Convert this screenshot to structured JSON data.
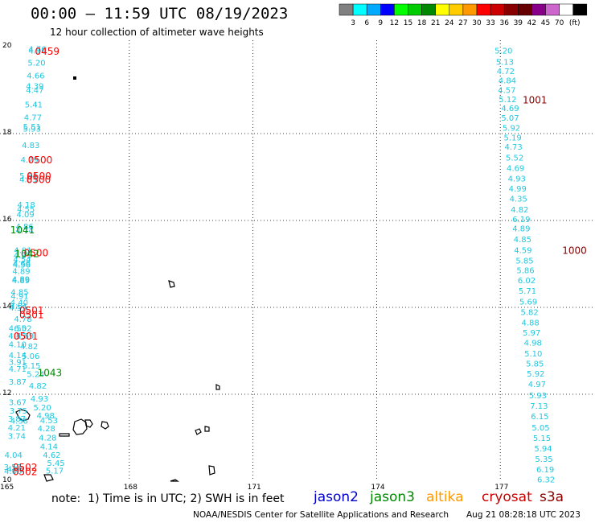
{
  "header": {
    "title": "00:00 – 11:59 UTC 08/19/2023",
    "subtitle": "12 hour collection of altimeter wave heights"
  },
  "scale": {
    "colors": [
      "#808080",
      "#00ffff",
      "#00aaff",
      "#0000ff",
      "#00ff00",
      "#00cc00",
      "#008800",
      "#ffff00",
      "#ffcc00",
      "#ff9900",
      "#ff0000",
      "#cc0000",
      "#880000",
      "#660000",
      "#880088",
      "#cc66cc",
      "#ffffff",
      "#000000"
    ],
    "labels": [
      "3",
      "6",
      "9",
      "12",
      "15",
      "18",
      "21",
      "24",
      "27",
      "30",
      "33",
      "36",
      "39",
      "42",
      "45",
      "70"
    ],
    "unit": "(ft)"
  },
  "axes": {
    "x_labels": [
      "165",
      "168",
      "171",
      "174",
      "177"
    ],
    "y_labels": [
      "20",
      "18",
      "16",
      "14",
      "12",
      "10"
    ]
  },
  "footer": {
    "note": "note:  1) Time is in UTC; 2) SWH is in feet",
    "satellites": [
      {
        "name": "jason2",
        "color": "#0000cc"
      },
      {
        "name": "jason3",
        "color": "#008800"
      },
      {
        "name": "altika",
        "color": "#ff9900"
      },
      {
        "name": "cryosat",
        "color": "#cc0000"
      },
      {
        "name": "s3a",
        "color": "#880000"
      }
    ],
    "credit": "NOAA/NESDIS Center for Satellite Applications and Research",
    "timestamp": "Aug 21 08:28:18 UTC 2023"
  },
  "map_data": {
    "lon_range": [
      165,
      180
    ],
    "lat_range": [
      10,
      20
    ],
    "track_west": [
      {
        "lat": 19.95,
        "lon": 165.77,
        "v": "4.76"
      },
      {
        "lat": 19.92,
        "lon": 165.77,
        "v": "4.90"
      },
      {
        "lat": 19.64,
        "lon": 165.75,
        "v": "5.20"
      },
      {
        "lat": 19.34,
        "lon": 165.73,
        "v": "4.66"
      },
      {
        "lat": 19.1,
        "lon": 165.71,
        "v": "4.39"
      },
      {
        "lat": 19.01,
        "lon": 165.71,
        "v": "4.47"
      },
      {
        "lat": 18.68,
        "lon": 165.68,
        "v": "5.41"
      },
      {
        "lat": 18.38,
        "lon": 165.66,
        "v": "4.77"
      },
      {
        "lat": 18.17,
        "lon": 165.64,
        "v": "5.51"
      },
      {
        "lat": 18.12,
        "lon": 165.64,
        "v": "5.93"
      },
      {
        "lat": 17.74,
        "lon": 165.61,
        "v": "4.83"
      },
      {
        "lat": 17.41,
        "lon": 165.58,
        "v": "4.79"
      },
      {
        "lat": 17.04,
        "lon": 165.55,
        "v": "5.64"
      },
      {
        "lat": 16.95,
        "lon": 165.55,
        "v": "4.83"
      },
      {
        "lat": 16.37,
        "lon": 165.5,
        "v": "4.18"
      },
      {
        "lat": 16.27,
        "lon": 165.49,
        "v": "4.55"
      },
      {
        "lat": 16.15,
        "lon": 165.48,
        "v": "4.09"
      },
      {
        "lat": 15.87,
        "lon": 165.46,
        "v": "4.86"
      },
      {
        "lat": 15.78,
        "lon": 165.46,
        "v": "4.74"
      },
      {
        "lat": 15.32,
        "lon": 165.42,
        "v": "4.91"
      },
      {
        "lat": 15.2,
        "lon": 165.41,
        "v": "4.31"
      },
      {
        "lat": 15.11,
        "lon": 165.4,
        "v": "4.54"
      },
      {
        "lat": 15.02,
        "lon": 165.39,
        "v": "4.66"
      },
      {
        "lat": 14.99,
        "lon": 165.39,
        "v": "4.56"
      },
      {
        "lat": 14.84,
        "lon": 165.38,
        "v": "4.89"
      },
      {
        "lat": 14.66,
        "lon": 165.37,
        "v": "4.89"
      },
      {
        "lat": 14.63,
        "lon": 165.37,
        "v": "4.89"
      },
      {
        "lat": 14.36,
        "lon": 165.34,
        "v": "4.85"
      },
      {
        "lat": 14.27,
        "lon": 165.34,
        "v": "4.91"
      },
      {
        "lat": 14.12,
        "lon": 165.33,
        "v": "4.40"
      },
      {
        "lat": 14.04,
        "lon": 165.32,
        "v": "4.51"
      },
      {
        "lat": 14.0,
        "lon": 165.3,
        "v": "4.55"
      },
      {
        "lat": 13.74,
        "lon": 165.42,
        "v": "4.78"
      },
      {
        "lat": 13.53,
        "lon": 165.29,
        "v": "4.55"
      },
      {
        "lat": 13.53,
        "lon": 165.42,
        "v": "6.02"
      },
      {
        "lat": 13.35,
        "lon": 165.28,
        "v": "4.55"
      },
      {
        "lat": 13.35,
        "lon": 165.47,
        "v": "4.69"
      },
      {
        "lat": 13.16,
        "lon": 165.29,
        "v": "4.10"
      },
      {
        "lat": 13.11,
        "lon": 165.57,
        "v": "4.82"
      },
      {
        "lat": 12.91,
        "lon": 165.29,
        "v": "4.14"
      },
      {
        "lat": 12.89,
        "lon": 165.61,
        "v": "5.06"
      },
      {
        "lat": 12.75,
        "lon": 165.29,
        "v": "3.91"
      },
      {
        "lat": 12.67,
        "lon": 165.63,
        "v": "5.15"
      },
      {
        "lat": 12.59,
        "lon": 165.29,
        "v": "4.71"
      },
      {
        "lat": 12.47,
        "lon": 165.73,
        "v": "5.24"
      },
      {
        "lat": 12.3,
        "lon": 165.29,
        "v": "3.87"
      },
      {
        "lat": 12.2,
        "lon": 165.78,
        "v": "4.82"
      },
      {
        "lat": 11.91,
        "lon": 165.82,
        "v": "4.93"
      },
      {
        "lat": 11.82,
        "lon": 165.29,
        "v": "3.67"
      },
      {
        "lat": 11.7,
        "lon": 165.89,
        "v": "5.20"
      },
      {
        "lat": 11.63,
        "lon": 165.31,
        "v": "3.75"
      },
      {
        "lat": 11.52,
        "lon": 165.97,
        "v": "4.98"
      },
      {
        "lat": 11.44,
        "lon": 165.27,
        "v": "3.87"
      },
      {
        "lat": 11.4,
        "lon": 165.33,
        "v": "4.38"
      },
      {
        "lat": 11.41,
        "lon": 166.05,
        "v": "4.53"
      },
      {
        "lat": 11.24,
        "lon": 165.27,
        "v": "4.21"
      },
      {
        "lat": 11.22,
        "lon": 165.99,
        "v": "4.28"
      },
      {
        "lat": 11.05,
        "lon": 165.27,
        "v": "3.74"
      },
      {
        "lat": 11.01,
        "lon": 166.02,
        "v": "4.28"
      },
      {
        "lat": 10.81,
        "lon": 166.05,
        "v": "4.14"
      },
      {
        "lat": 10.61,
        "lon": 165.19,
        "v": "4.04"
      },
      {
        "lat": 10.61,
        "lon": 166.12,
        "v": "4.62"
      },
      {
        "lat": 10.43,
        "lon": 166.22,
        "v": "5.45"
      },
      {
        "lat": 10.33,
        "lon": 165.17,
        "v": "3.57"
      },
      {
        "lat": 10.25,
        "lon": 166.19,
        "v": "5.17"
      },
      {
        "lat": 10.24,
        "lon": 165.18,
        "v": "4.00"
      },
      {
        "lat": 10.29,
        "lon": 165.25,
        "v": "4.62"
      }
    ],
    "track_east": [
      {
        "lat": 19.92,
        "lon": 177.08,
        "v": "5.20"
      },
      {
        "lat": 19.66,
        "lon": 177.11,
        "v": "5.13"
      },
      {
        "lat": 19.44,
        "lon": 177.13,
        "v": "4.72"
      },
      {
        "lat": 19.23,
        "lon": 177.17,
        "v": "4.84"
      },
      {
        "lat": 19.01,
        "lon": 177.16,
        "v": "4.57"
      },
      {
        "lat": 18.8,
        "lon": 177.18,
        "v": "5.12"
      },
      {
        "lat": 18.59,
        "lon": 177.24,
        "v": "4.69"
      },
      {
        "lat": 18.37,
        "lon": 177.24,
        "v": "5.07"
      },
      {
        "lat": 18.14,
        "lon": 177.27,
        "v": "5.92"
      },
      {
        "lat": 17.92,
        "lon": 177.3,
        "v": "5.19"
      },
      {
        "lat": 17.7,
        "lon": 177.32,
        "v": "4.73"
      },
      {
        "lat": 17.45,
        "lon": 177.35,
        "v": "5.52"
      },
      {
        "lat": 17.21,
        "lon": 177.37,
        "v": "4.69"
      },
      {
        "lat": 16.97,
        "lon": 177.4,
        "v": "4.93"
      },
      {
        "lat": 16.74,
        "lon": 177.42,
        "v": "4.99"
      },
      {
        "lat": 16.51,
        "lon": 177.44,
        "v": "4.35"
      },
      {
        "lat": 16.26,
        "lon": 177.47,
        "v": "4.82"
      },
      {
        "lat": 16.04,
        "lon": 177.51,
        "v": "6.19"
      },
      {
        "lat": 15.82,
        "lon": 177.51,
        "v": "4.89"
      },
      {
        "lat": 15.57,
        "lon": 177.54,
        "v": "4.85"
      },
      {
        "lat": 15.32,
        "lon": 177.55,
        "v": "4.59"
      },
      {
        "lat": 15.08,
        "lon": 177.59,
        "v": "5.85"
      },
      {
        "lat": 14.86,
        "lon": 177.61,
        "v": "5.86"
      },
      {
        "lat": 14.63,
        "lon": 177.64,
        "v": "6.02"
      },
      {
        "lat": 14.39,
        "lon": 177.66,
        "v": "5.71"
      },
      {
        "lat": 14.14,
        "lon": 177.68,
        "v": "5.69"
      },
      {
        "lat": 13.9,
        "lon": 177.71,
        "v": "5.82"
      },
      {
        "lat": 13.66,
        "lon": 177.73,
        "v": "4.88"
      },
      {
        "lat": 13.43,
        "lon": 177.76,
        "v": "5.97"
      },
      {
        "lat": 13.19,
        "lon": 177.79,
        "v": "4.98"
      },
      {
        "lat": 12.94,
        "lon": 177.8,
        "v": "5.10"
      },
      {
        "lat": 12.71,
        "lon": 177.84,
        "v": "5.85"
      },
      {
        "lat": 12.48,
        "lon": 177.86,
        "v": "5.92"
      },
      {
        "lat": 12.24,
        "lon": 177.89,
        "v": "4.97"
      },
      {
        "lat": 11.98,
        "lon": 177.91,
        "v": "5.93"
      },
      {
        "lat": 11.74,
        "lon": 177.94,
        "v": "7.13"
      },
      {
        "lat": 11.5,
        "lon": 177.96,
        "v": "6.15"
      },
      {
        "lat": 11.24,
        "lon": 177.98,
        "v": "5.05"
      },
      {
        "lat": 11.0,
        "lon": 178.01,
        "v": "5.15"
      },
      {
        "lat": 10.76,
        "lon": 178.04,
        "v": "5.94"
      },
      {
        "lat": 10.52,
        "lon": 178.06,
        "v": "5.35"
      },
      {
        "lat": 10.28,
        "lon": 178.09,
        "v": "6.19"
      },
      {
        "lat": 10.05,
        "lon": 178.11,
        "v": "6.32"
      }
    ],
    "time_labels": [
      {
        "lat": 19.91,
        "lon": 166.01,
        "t": "0459",
        "color": "#ff0000"
      },
      {
        "lat": 17.41,
        "lon": 165.84,
        "t": "0500",
        "color": "#ff0000"
      },
      {
        "lat": 17.04,
        "lon": 165.81,
        "t": "0500",
        "color": "#ff0000"
      },
      {
        "lat": 16.95,
        "lon": 165.8,
        "t": "0500",
        "color": "#ff0000"
      },
      {
        "lat": 15.27,
        "lon": 165.74,
        "t": "0500",
        "color": "#ff0000"
      },
      {
        "lat": 13.94,
        "lon": 165.63,
        "t": "0501",
        "color": "#ff0000"
      },
      {
        "lat": 13.84,
        "lon": 165.63,
        "t": "0501",
        "color": "#ff0000"
      },
      {
        "lat": 13.35,
        "lon": 165.49,
        "t": "0501",
        "color": "#ff0000"
      },
      {
        "lat": 10.33,
        "lon": 165.47,
        "t": "0502",
        "color": "#ff0000"
      },
      {
        "lat": 10.23,
        "lon": 165.47,
        "t": "0502",
        "color": "#ff0000"
      },
      {
        "lat": 15.8,
        "lon": 165.41,
        "t": "1041",
        "color": "#008800"
      },
      {
        "lat": 15.25,
        "lon": 165.52,
        "t": "1042",
        "color": "#008800"
      },
      {
        "lat": 12.51,
        "lon": 166.07,
        "t": "1043",
        "color": "#008800"
      },
      {
        "lat": 18.79,
        "lon": 177.84,
        "t": "1001",
        "color": "#880000"
      },
      {
        "lat": 15.32,
        "lon": 178.8,
        "t": "1000",
        "color": "#880000"
      }
    ]
  }
}
